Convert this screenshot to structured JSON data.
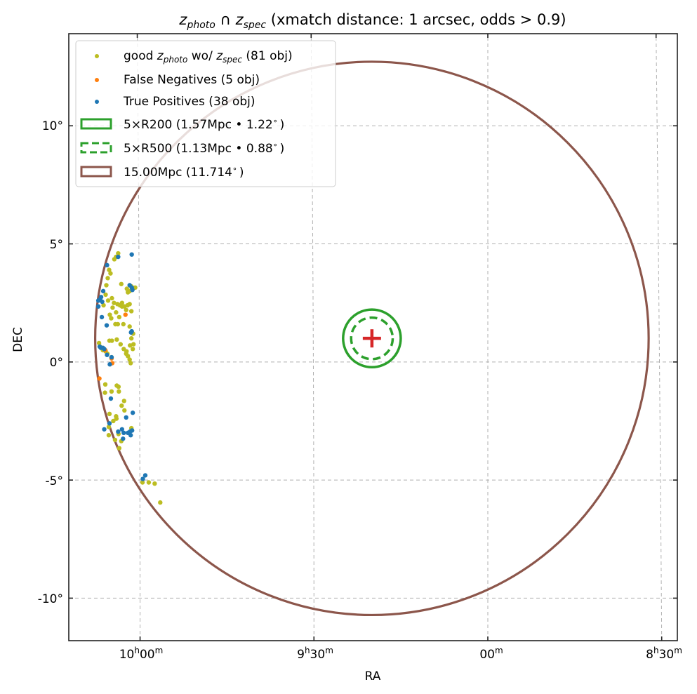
{
  "chart_data": {
    "type": "scatter",
    "title": {
      "z1": "z",
      "z1_sub": "photo",
      "cap": " ∩ ",
      "z2": "z",
      "z2_sub": "spec",
      "rest": " (xmatch distance: 1 arcsec, odds > 0.9)"
    },
    "xlabel": "RA",
    "ylabel": "DEC",
    "xlim_hours": [
      10.205,
      8.455
    ],
    "ylim_deg": [
      -11.8,
      13.9
    ],
    "grid": true,
    "center": {
      "ra_h": 9.3333,
      "dec_deg": 1.0,
      "marker": "plus",
      "color": "#d62728"
    },
    "x_ticks": [
      {
        "value": 10.0,
        "h": "10",
        "hs": "h",
        "m": "00",
        "ms": "m"
      },
      {
        "value": 9.5,
        "h": "9",
        "hs": "h",
        "m": "30",
        "ms": "m"
      },
      {
        "value": 9.0,
        "h": "",
        "hs": "",
        "m": "00",
        "ms": "m"
      },
      {
        "value": 8.5,
        "h": "8",
        "hs": "h",
        "m": "30",
        "ms": "m"
      }
    ],
    "y_ticks": [
      {
        "value": 10,
        "label": "10°"
      },
      {
        "value": 5,
        "label": "5°"
      },
      {
        "value": 0,
        "label": "0°"
      },
      {
        "value": -5,
        "label": "-5°"
      },
      {
        "value": -10,
        "label": "-10°"
      }
    ],
    "circles": [
      {
        "name": "r200",
        "radius_deg": 1.22,
        "color": "#2ca02c",
        "dashed": false
      },
      {
        "name": "r500",
        "radius_deg": 0.88,
        "color": "#2ca02c",
        "dashed": true
      },
      {
        "name": "r15mpc",
        "radius_deg": 11.714,
        "color": "#8c564b",
        "dashed": false
      }
    ],
    "legend": {
      "position": "upper-left",
      "entries": [
        {
          "kind": "dot",
          "color": "#bcbd22",
          "pre": "good ",
          "z1": "z",
          "z1_sub": "photo",
          "mid": " wo/ ",
          "z2": "z",
          "z2_sub": "spec",
          "post": " (81 obj)"
        },
        {
          "kind": "dot",
          "color": "#ff7f0e",
          "label": "False Negatives (5 obj)"
        },
        {
          "kind": "dot",
          "color": "#1f77b4",
          "label": "True Positives (38 obj)"
        },
        {
          "kind": "rect",
          "color": "#2ca02c",
          "dashed": false,
          "label": "5×R200 (1.57Mpc • 1.22",
          "deg": "∘",
          "close": ")"
        },
        {
          "kind": "rect",
          "color": "#2ca02c",
          "dashed": true,
          "label": "5×R500 (1.13Mpc • 0.88",
          "deg": "∘",
          "close": ")"
        },
        {
          "kind": "rect",
          "color": "#8c564b",
          "dashed": false,
          "label": "15.00Mpc (11.714",
          "deg": "∘",
          "close": ")"
        }
      ]
    },
    "series": [
      {
        "name": "good zphoto wo/ zspec",
        "color": "#bcbd22",
        "points": [
          [
            10.063,
            4.6
          ],
          [
            10.069,
            4.45
          ],
          [
            10.074,
            4.35
          ],
          [
            10.089,
            3.9
          ],
          [
            10.085,
            3.75
          ],
          [
            10.093,
            3.55
          ],
          [
            10.097,
            3.25
          ],
          [
            10.054,
            3.3
          ],
          [
            10.038,
            3.1
          ],
          [
            10.03,
            3.0
          ],
          [
            10.025,
            3.2
          ],
          [
            10.099,
            2.85
          ],
          [
            10.081,
            2.7
          ],
          [
            10.075,
            2.5
          ],
          [
            10.065,
            2.45
          ],
          [
            10.058,
            2.4
          ],
          [
            10.052,
            2.35
          ],
          [
            10.045,
            2.35
          ],
          [
            10.036,
            2.4
          ],
          [
            10.03,
            2.45
          ],
          [
            10.04,
            2.2
          ],
          [
            10.025,
            2.15
          ],
          [
            10.092,
            2.6
          ],
          [
            10.105,
            2.4
          ],
          [
            10.087,
            2.0
          ],
          [
            10.083,
            1.85
          ],
          [
            10.071,
            1.6
          ],
          [
            10.064,
            1.6
          ],
          [
            10.048,
            1.6
          ],
          [
            10.03,
            1.5
          ],
          [
            10.02,
            1.2
          ],
          [
            10.025,
            1.0
          ],
          [
            10.088,
            0.9
          ],
          [
            10.081,
            0.9
          ],
          [
            10.067,
            0.95
          ],
          [
            10.056,
            0.75
          ],
          [
            10.047,
            0.55
          ],
          [
            10.04,
            0.35
          ],
          [
            10.035,
            0.25
          ],
          [
            10.03,
            0.1
          ],
          [
            10.027,
            -0.05
          ],
          [
            10.021,
            0.55
          ],
          [
            10.019,
            0.75
          ],
          [
            10.029,
            0.7
          ],
          [
            10.039,
            0.45
          ],
          [
            10.099,
            0.45
          ],
          [
            10.107,
            0.5
          ],
          [
            10.115,
            0.65
          ],
          [
            10.118,
            0.8
          ],
          [
            10.094,
            0.35
          ],
          [
            10.082,
            0.2
          ],
          [
            10.067,
            -1.0
          ],
          [
            10.062,
            -1.05
          ],
          [
            10.101,
            -1.3
          ],
          [
            10.082,
            -1.25
          ],
          [
            10.061,
            -1.25
          ],
          [
            10.046,
            -1.65
          ],
          [
            10.053,
            -1.85
          ],
          [
            10.045,
            -2.05
          ],
          [
            10.069,
            -2.3
          ],
          [
            10.068,
            -2.4
          ],
          [
            10.077,
            -2.5
          ],
          [
            10.025,
            -2.8
          ],
          [
            10.062,
            -3.05
          ],
          [
            10.072,
            -3.3
          ],
          [
            10.054,
            -3.35
          ],
          [
            10.06,
            -3.65
          ],
          [
            10.09,
            -3.1
          ],
          [
            10.1,
            -0.95
          ],
          [
            10.09,
            -2.75
          ],
          [
            10.088,
            -2.2
          ],
          [
            9.975,
            -5.1
          ],
          [
            9.993,
            -5.1
          ],
          [
            9.958,
            -5.15
          ],
          [
            9.942,
            -5.95
          ],
          [
            10.079,
            2.3
          ],
          [
            10.069,
            2.1
          ],
          [
            10.014,
            3.15
          ],
          [
            10.035,
            2.95
          ],
          [
            10.052,
            2.5
          ],
          [
            10.06,
            1.9
          ]
        ]
      },
      {
        "name": "False Negatives",
        "color": "#ff7f0e",
        "points": [
          [
            10.042,
            2.0
          ],
          [
            10.082,
            0.15
          ],
          [
            10.117,
            -0.7
          ],
          [
            10.08,
            -0.05
          ],
          [
            10.1,
            0.5
          ]
        ]
      },
      {
        "name": "True Positives",
        "color": "#1f77b4",
        "points": [
          [
            10.024,
            4.55
          ],
          [
            10.063,
            4.45
          ],
          [
            10.095,
            4.1
          ],
          [
            10.106,
            3.0
          ],
          [
            10.112,
            2.75
          ],
          [
            10.12,
            2.6
          ],
          [
            10.115,
            2.65
          ],
          [
            10.109,
            2.55
          ],
          [
            10.03,
            3.25
          ],
          [
            10.024,
            3.15
          ],
          [
            10.022,
            3.05
          ],
          [
            10.096,
            1.55
          ],
          [
            10.024,
            1.3
          ],
          [
            10.026,
            1.25
          ],
          [
            10.113,
            0.6
          ],
          [
            10.107,
            0.6
          ],
          [
            10.103,
            0.55
          ],
          [
            10.095,
            0.3
          ],
          [
            10.087,
            -0.1
          ],
          [
            10.082,
            0.2
          ],
          [
            10.084,
            -1.55
          ],
          [
            10.103,
            -2.85
          ],
          [
            10.088,
            -2.6
          ],
          [
            10.052,
            -2.85
          ],
          [
            10.063,
            -2.95
          ],
          [
            10.047,
            -3.0
          ],
          [
            10.04,
            -2.35
          ],
          [
            10.021,
            -2.15
          ],
          [
            10.035,
            -3.0
          ],
          [
            10.027,
            -3.1
          ],
          [
            10.029,
            -2.95
          ],
          [
            10.023,
            -2.9
          ],
          [
            10.049,
            -3.25
          ],
          [
            9.992,
            -4.95
          ],
          [
            9.985,
            -4.8
          ],
          [
            10.12,
            2.35
          ],
          [
            10.11,
            1.9
          ],
          [
            10.116,
            0.65
          ]
        ]
      }
    ]
  }
}
